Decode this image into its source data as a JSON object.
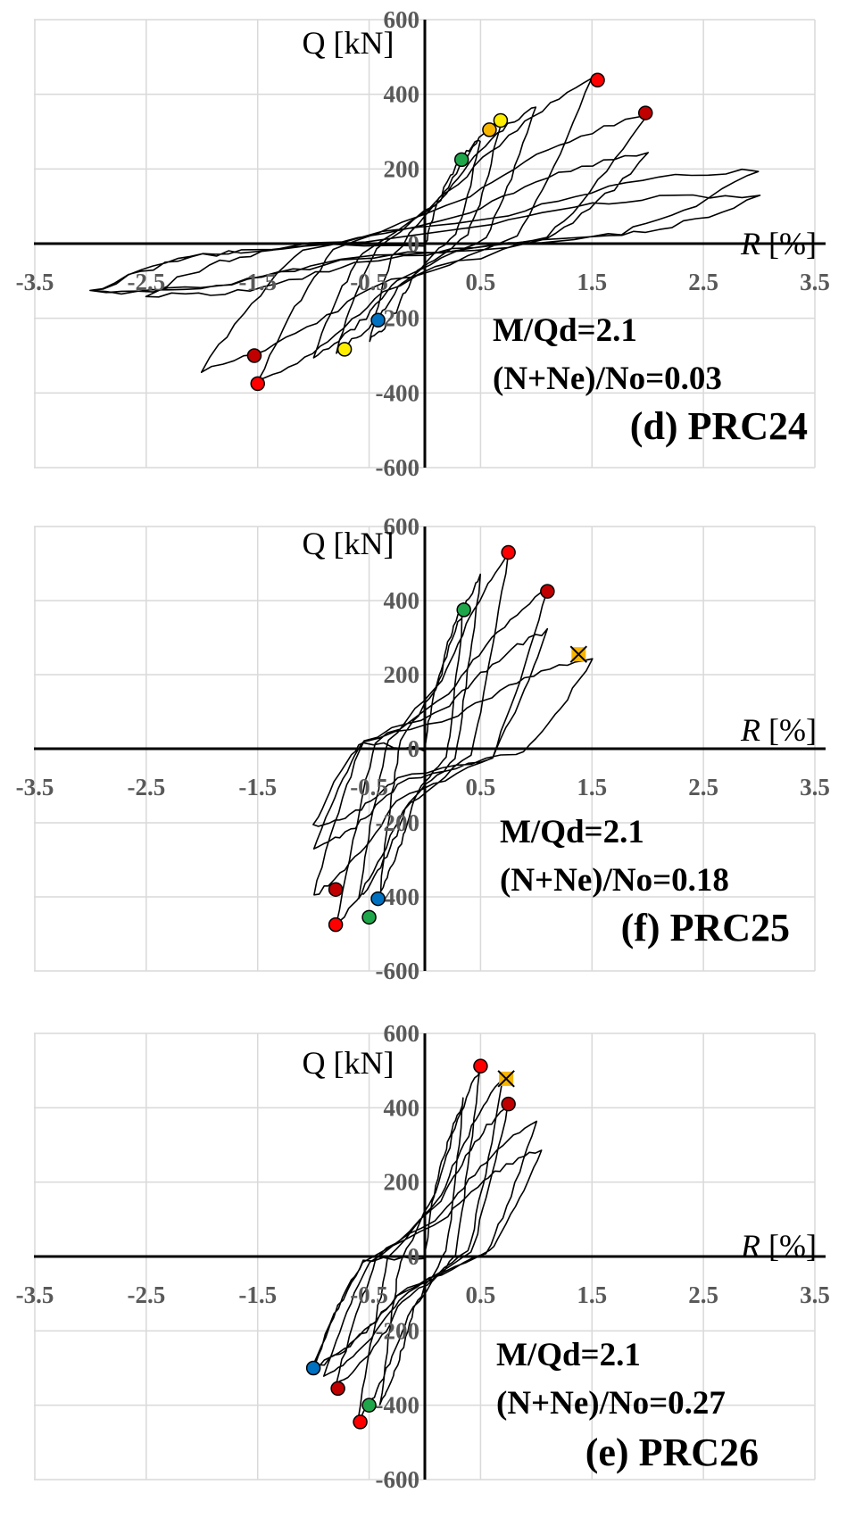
{
  "chart_data": [
    {
      "type": "line",
      "title": "(d) PRC24",
      "annotations": [
        "M/Qd=2.1",
        "(N+Ne)/No=0.03"
      ],
      "xlabel_var": "R",
      "xlabel_unit": "[%]",
      "ylabel": "Q [kN]",
      "xlim": [
        -3.5,
        3.5
      ],
      "ylim": [
        -600,
        600
      ],
      "x_ticks": [
        "-3.5",
        "-2.5",
        "-1.5",
        "-0.5",
        "0.5",
        "1.5",
        "2.5",
        "3.5"
      ],
      "y_ticks": [
        "-600",
        "-400",
        "-200",
        "0",
        "200",
        "400",
        "600"
      ],
      "grid": true,
      "loop_peaks": [
        [
          0.5,
          280
        ],
        [
          0.7,
          340
        ],
        [
          1.0,
          370
        ],
        [
          1.5,
          440
        ],
        [
          2.0,
          350
        ],
        [
          2.0,
          240
        ],
        [
          3.0,
          200
        ],
        [
          3.0,
          130
        ],
        [
          -0.5,
          -260
        ],
        [
          -0.8,
          -290
        ],
        [
          -1.0,
          -300
        ],
        [
          -1.5,
          -370
        ],
        [
          -2.0,
          -340
        ],
        [
          -2.5,
          -140
        ],
        [
          -3.0,
          -130
        ]
      ],
      "residual": 20,
      "markers": [
        {
          "x": 0.33,
          "y": 225,
          "color": "#1fa64a",
          "shape": "circle"
        },
        {
          "x": 0.58,
          "y": 305,
          "color": "#f7b500",
          "shape": "circle"
        },
        {
          "x": 0.68,
          "y": 330,
          "color": "#ffee00",
          "shape": "circle"
        },
        {
          "x": 1.55,
          "y": 438,
          "color": "#ff0000",
          "shape": "circle"
        },
        {
          "x": 1.98,
          "y": 350,
          "color": "#c00000",
          "shape": "circle"
        },
        {
          "x": -0.42,
          "y": -205,
          "color": "#0070c0",
          "shape": "circle"
        },
        {
          "x": -0.72,
          "y": -283,
          "color": "#ffee00",
          "shape": "circle"
        },
        {
          "x": -1.53,
          "y": -300,
          "color": "#c00000",
          "shape": "circle"
        },
        {
          "x": -1.5,
          "y": -375,
          "color": "#ff0000",
          "shape": "circle"
        }
      ]
    },
    {
      "type": "line",
      "title": "(f) PRC25",
      "annotations": [
        "M/Qd=2.1",
        "(N+Ne)/No=0.18"
      ],
      "xlabel_var": "R",
      "xlabel_unit": "[%]",
      "ylabel": "Q [kN]",
      "xlim": [
        -3.5,
        3.5
      ],
      "ylim": [
        -600,
        600
      ],
      "x_ticks": [
        "-3.5",
        "-2.5",
        "-1.5",
        "-0.5",
        "0.5",
        "1.5",
        "2.5",
        "3.5"
      ],
      "y_ticks": [
        "-600",
        "-400",
        "-200",
        "0",
        "200",
        "400",
        "600"
      ],
      "grid": true,
      "loop_peaks": [
        [
          0.35,
          390
        ],
        [
          0.5,
          470
        ],
        [
          0.75,
          530
        ],
        [
          1.1,
          430
        ],
        [
          1.1,
          320
        ],
        [
          1.5,
          240
        ],
        [
          -0.4,
          -380
        ],
        [
          -0.6,
          -410
        ],
        [
          -0.8,
          -480
        ],
        [
          -1.0,
          -400
        ],
        [
          -1.0,
          -270
        ],
        [
          -1.0,
          -210
        ]
      ],
      "residual": -20,
      "markers": [
        {
          "x": 0.35,
          "y": 375,
          "color": "#1fa64a",
          "shape": "circle"
        },
        {
          "x": 0.75,
          "y": 530,
          "color": "#ff0000",
          "shape": "circle"
        },
        {
          "x": 1.1,
          "y": 425,
          "color": "#c00000",
          "shape": "circle"
        },
        {
          "x": 1.38,
          "y": 255,
          "color": "#f7b500",
          "shape": "x-square"
        },
        {
          "x": -0.42,
          "y": -405,
          "color": "#0070c0",
          "shape": "circle"
        },
        {
          "x": -0.5,
          "y": -455,
          "color": "#1fa64a",
          "shape": "circle"
        },
        {
          "x": -0.8,
          "y": -380,
          "color": "#c00000",
          "shape": "circle"
        },
        {
          "x": -0.8,
          "y": -475,
          "color": "#ff0000",
          "shape": "circle"
        }
      ]
    },
    {
      "type": "line",
      "title": "(e) PRC26",
      "annotations": [
        "M/Qd=2.1",
        "(N+Ne)/No=0.27"
      ],
      "xlabel_var": "R",
      "xlabel_unit": "[%]",
      "ylabel": "Q [kN]",
      "xlim": [
        -3.5,
        3.5
      ],
      "ylim": [
        -600,
        600
      ],
      "x_ticks": [
        "-3.5",
        "-2.5",
        "-1.5",
        "-0.5",
        "0.5",
        "1.5",
        "2.5",
        "3.5"
      ],
      "y_ticks": [
        "-600",
        "-400",
        "-200",
        "0",
        "200",
        "400",
        "600"
      ],
      "grid": true,
      "loop_peaks": [
        [
          0.35,
          420
        ],
        [
          0.5,
          510
        ],
        [
          0.7,
          480
        ],
        [
          0.75,
          410
        ],
        [
          1.0,
          360
        ],
        [
          1.05,
          290
        ],
        [
          -0.4,
          -400
        ],
        [
          -0.6,
          -440
        ],
        [
          -0.8,
          -350
        ],
        [
          -0.9,
          -320
        ],
        [
          -1.0,
          -300
        ]
      ],
      "residual": 10,
      "markers": [
        {
          "x": 0.5,
          "y": 512,
          "color": "#ff0000",
          "shape": "circle"
        },
        {
          "x": 0.73,
          "y": 478,
          "color": "#f7b500",
          "shape": "x-square"
        },
        {
          "x": 0.75,
          "y": 410,
          "color": "#c00000",
          "shape": "circle"
        },
        {
          "x": -0.5,
          "y": -400,
          "color": "#1fa64a",
          "shape": "circle"
        },
        {
          "x": -0.58,
          "y": -445,
          "color": "#ff0000",
          "shape": "circle"
        },
        {
          "x": -0.78,
          "y": -355,
          "color": "#c00000",
          "shape": "circle"
        },
        {
          "x": -1.0,
          "y": -300,
          "color": "#0070c0",
          "shape": "circle"
        }
      ]
    }
  ]
}
